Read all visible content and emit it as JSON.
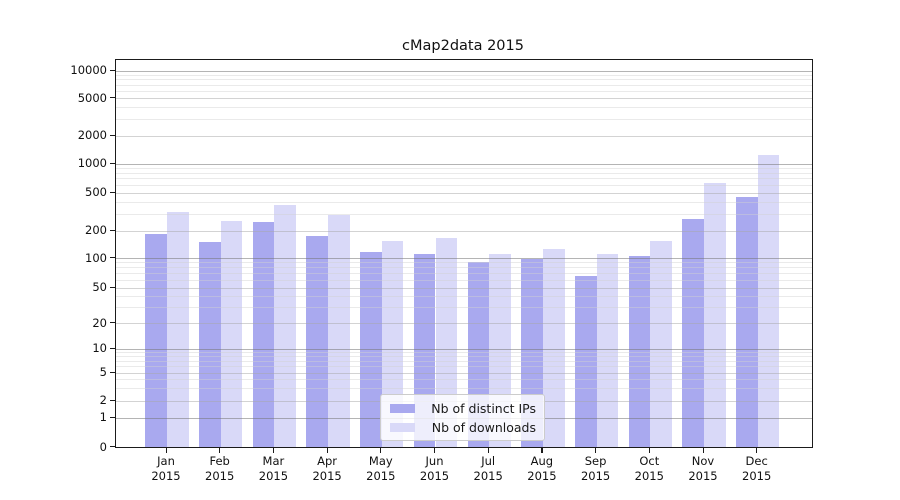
{
  "title": "cMap2data 2015",
  "legend": {
    "items": [
      {
        "label": "Nb of distinct IPs",
        "color": "#a9a9ef"
      },
      {
        "label": "Nb of downloads",
        "color": "#d9d9f8"
      }
    ]
  },
  "x_axis": {
    "months": [
      "Jan",
      "Feb",
      "Mar",
      "Apr",
      "May",
      "Jun",
      "Jul",
      "Aug",
      "Sep",
      "Oct",
      "Nov",
      "Dec"
    ],
    "year_line": "2015"
  },
  "y_axis": {
    "tick_labels": [
      "10000",
      "5000",
      "2000",
      "1000",
      "500",
      "200",
      "100",
      "50",
      "20",
      "10",
      "5",
      "2",
      "1",
      "0"
    ]
  },
  "chart_data": {
    "type": "bar",
    "title": "cMap2data 2015",
    "categories": [
      "Jan 2015",
      "Feb 2015",
      "Mar 2015",
      "Apr 2015",
      "May 2015",
      "Jun 2015",
      "Jul 2015",
      "Aug 2015",
      "Sep 2015",
      "Oct 2015",
      "Nov 2015",
      "Dec 2015"
    ],
    "series": [
      {
        "name": "Nb of distinct IPs",
        "color": "#a9a9ef",
        "values": [
          185,
          148,
          248,
          172,
          117,
          112,
          90,
          98,
          65,
          106,
          265,
          452
        ]
      },
      {
        "name": "Nb of downloads",
        "color": "#d9d9f8",
        "values": [
          310,
          252,
          366,
          292,
          152,
          165,
          112,
          127,
          112,
          152,
          630,
          1250
        ]
      }
    ],
    "yscale": "symlog",
    "yticks": [
      0,
      1,
      2,
      5,
      10,
      20,
      50,
      100,
      200,
      500,
      1000,
      2000,
      5000,
      10000
    ],
    "ylim": [
      0,
      13000
    ],
    "grid": true,
    "minor_grid": true,
    "legend_position": "lower center",
    "xlabel": "",
    "ylabel": ""
  }
}
